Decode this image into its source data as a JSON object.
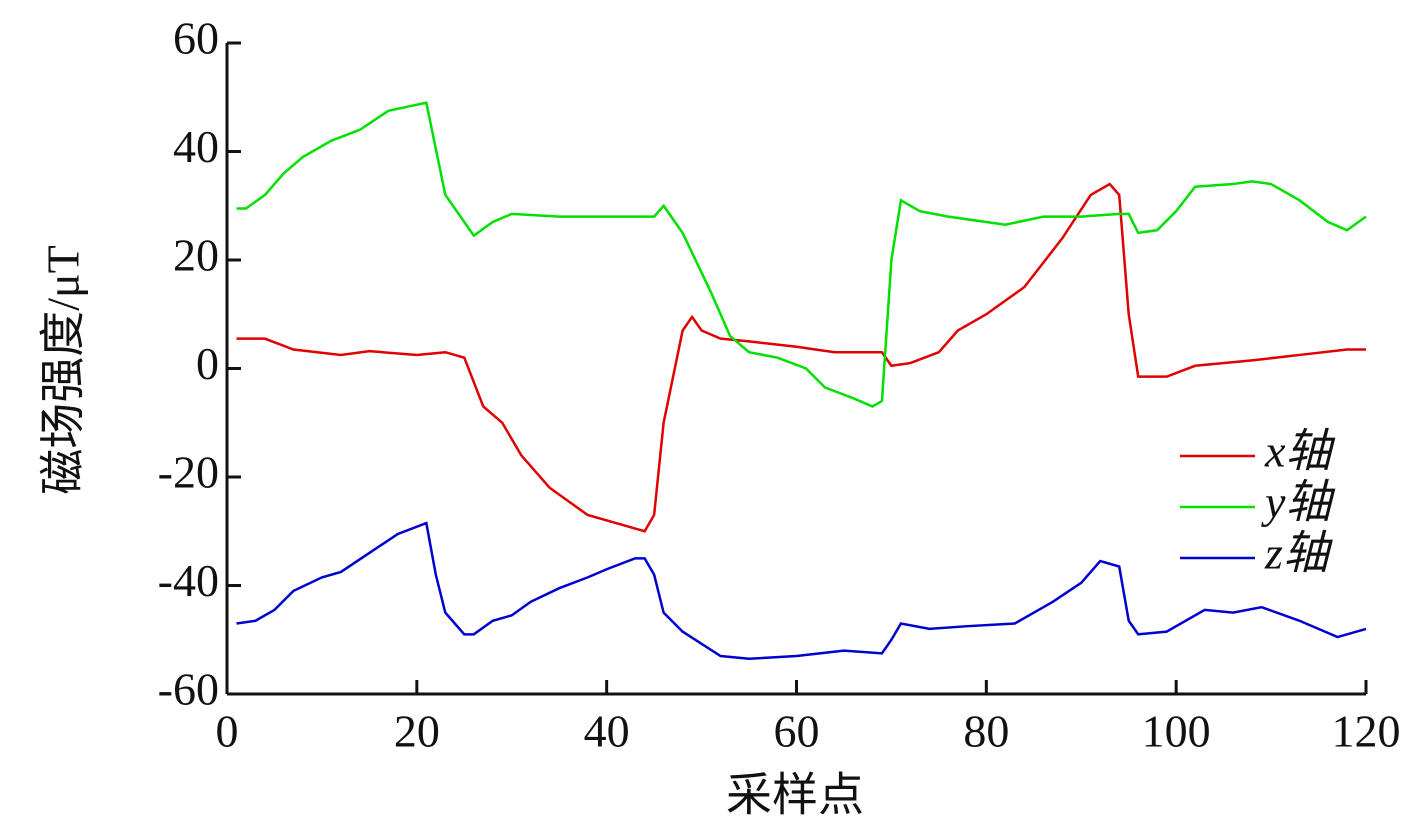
{
  "chart_data": {
    "type": "line",
    "x_label": "采样点",
    "y_label": "磁场强度/μT",
    "xlim": [
      0,
      120
    ],
    "xticks": [
      0,
      20,
      40,
      60,
      80,
      100,
      120
    ],
    "ylim": [
      -60,
      60
    ],
    "yticks": [
      -60,
      -40,
      -20,
      0,
      20,
      40,
      60
    ],
    "legend": "center right",
    "series": [
      {
        "name": "x轴",
        "color": "#e00000",
        "x": [
          1,
          4,
          7,
          12,
          15,
          20,
          23,
          25,
          27,
          29,
          31,
          34,
          38,
          42,
          44,
          45,
          46,
          48,
          49,
          50,
          52,
          55,
          60,
          64,
          69,
          70,
          72,
          75,
          77,
          80,
          84,
          88,
          91,
          93,
          94,
          95,
          96,
          99,
          102,
          108,
          113,
          118,
          120
        ],
        "values": [
          5.5,
          5.5,
          3.5,
          2.5,
          3.2,
          2.5,
          3,
          2,
          -7,
          -10,
          -16,
          -22,
          -27,
          -29,
          -30,
          -27,
          -10,
          7,
          9.5,
          7,
          5.5,
          5,
          4,
          3,
          3,
          0.5,
          1,
          3,
          7,
          10,
          15,
          24,
          32,
          34,
          32,
          10,
          -1.5,
          -1.5,
          0.5,
          1.5,
          2.5,
          3.5,
          3.5
        ]
      },
      {
        "name": "y轴",
        "color": "#00e000",
        "x": [
          1,
          2,
          4,
          6,
          8,
          11,
          14,
          17,
          21,
          23,
          25,
          26,
          28,
          30,
          35,
          40,
          45,
          46,
          48,
          51,
          53,
          55,
          58,
          61,
          63,
          66,
          68,
          69,
          70,
          71,
          73,
          76,
          80,
          82,
          86,
          90,
          94,
          95,
          96,
          98,
          100,
          102,
          106,
          108,
          110,
          113,
          116,
          118,
          120
        ],
        "values": [
          29.5,
          29.5,
          32,
          36,
          39,
          42,
          44,
          47.5,
          49,
          32,
          27,
          24.5,
          27,
          28.5,
          28,
          28,
          28,
          30,
          25,
          14,
          6,
          3,
          2,
          0,
          -3.5,
          -5.5,
          -7,
          -6,
          20,
          31,
          29,
          28,
          27,
          26.5,
          28,
          28,
          28.5,
          28.5,
          25,
          25.5,
          29,
          33.5,
          34,
          34.5,
          34,
          31,
          27,
          25.5,
          28
        ]
      },
      {
        "name": "z轴",
        "color": "#0000d0",
        "x": [
          1,
          3,
          5,
          7,
          10,
          12,
          15,
          18,
          21,
          22,
          23,
          25,
          26,
          28,
          30,
          32,
          35,
          38,
          40,
          43,
          44,
          45,
          46,
          48,
          52,
          55,
          60,
          65,
          69,
          70,
          71,
          74,
          78,
          83,
          87,
          90,
          92,
          94,
          95,
          96,
          99,
          103,
          106,
          109,
          113,
          117,
          120
        ],
        "values": [
          -47,
          -46.5,
          -44.5,
          -41,
          -38.5,
          -37.5,
          -34,
          -30.5,
          -28.5,
          -38,
          -45,
          -49,
          -49,
          -46.5,
          -45.5,
          -43,
          -40.5,
          -38.5,
          -37,
          -35,
          -35,
          -38,
          -45,
          -48.5,
          -53,
          -53.5,
          -53,
          -52,
          -52.5,
          -50,
          -47,
          -48,
          -47.5,
          -47,
          -43,
          -39.5,
          -35.5,
          -36.5,
          -46.5,
          -49,
          -48.5,
          -44.5,
          -45,
          -44,
          -46.5,
          -49.5,
          -48
        ]
      }
    ]
  }
}
